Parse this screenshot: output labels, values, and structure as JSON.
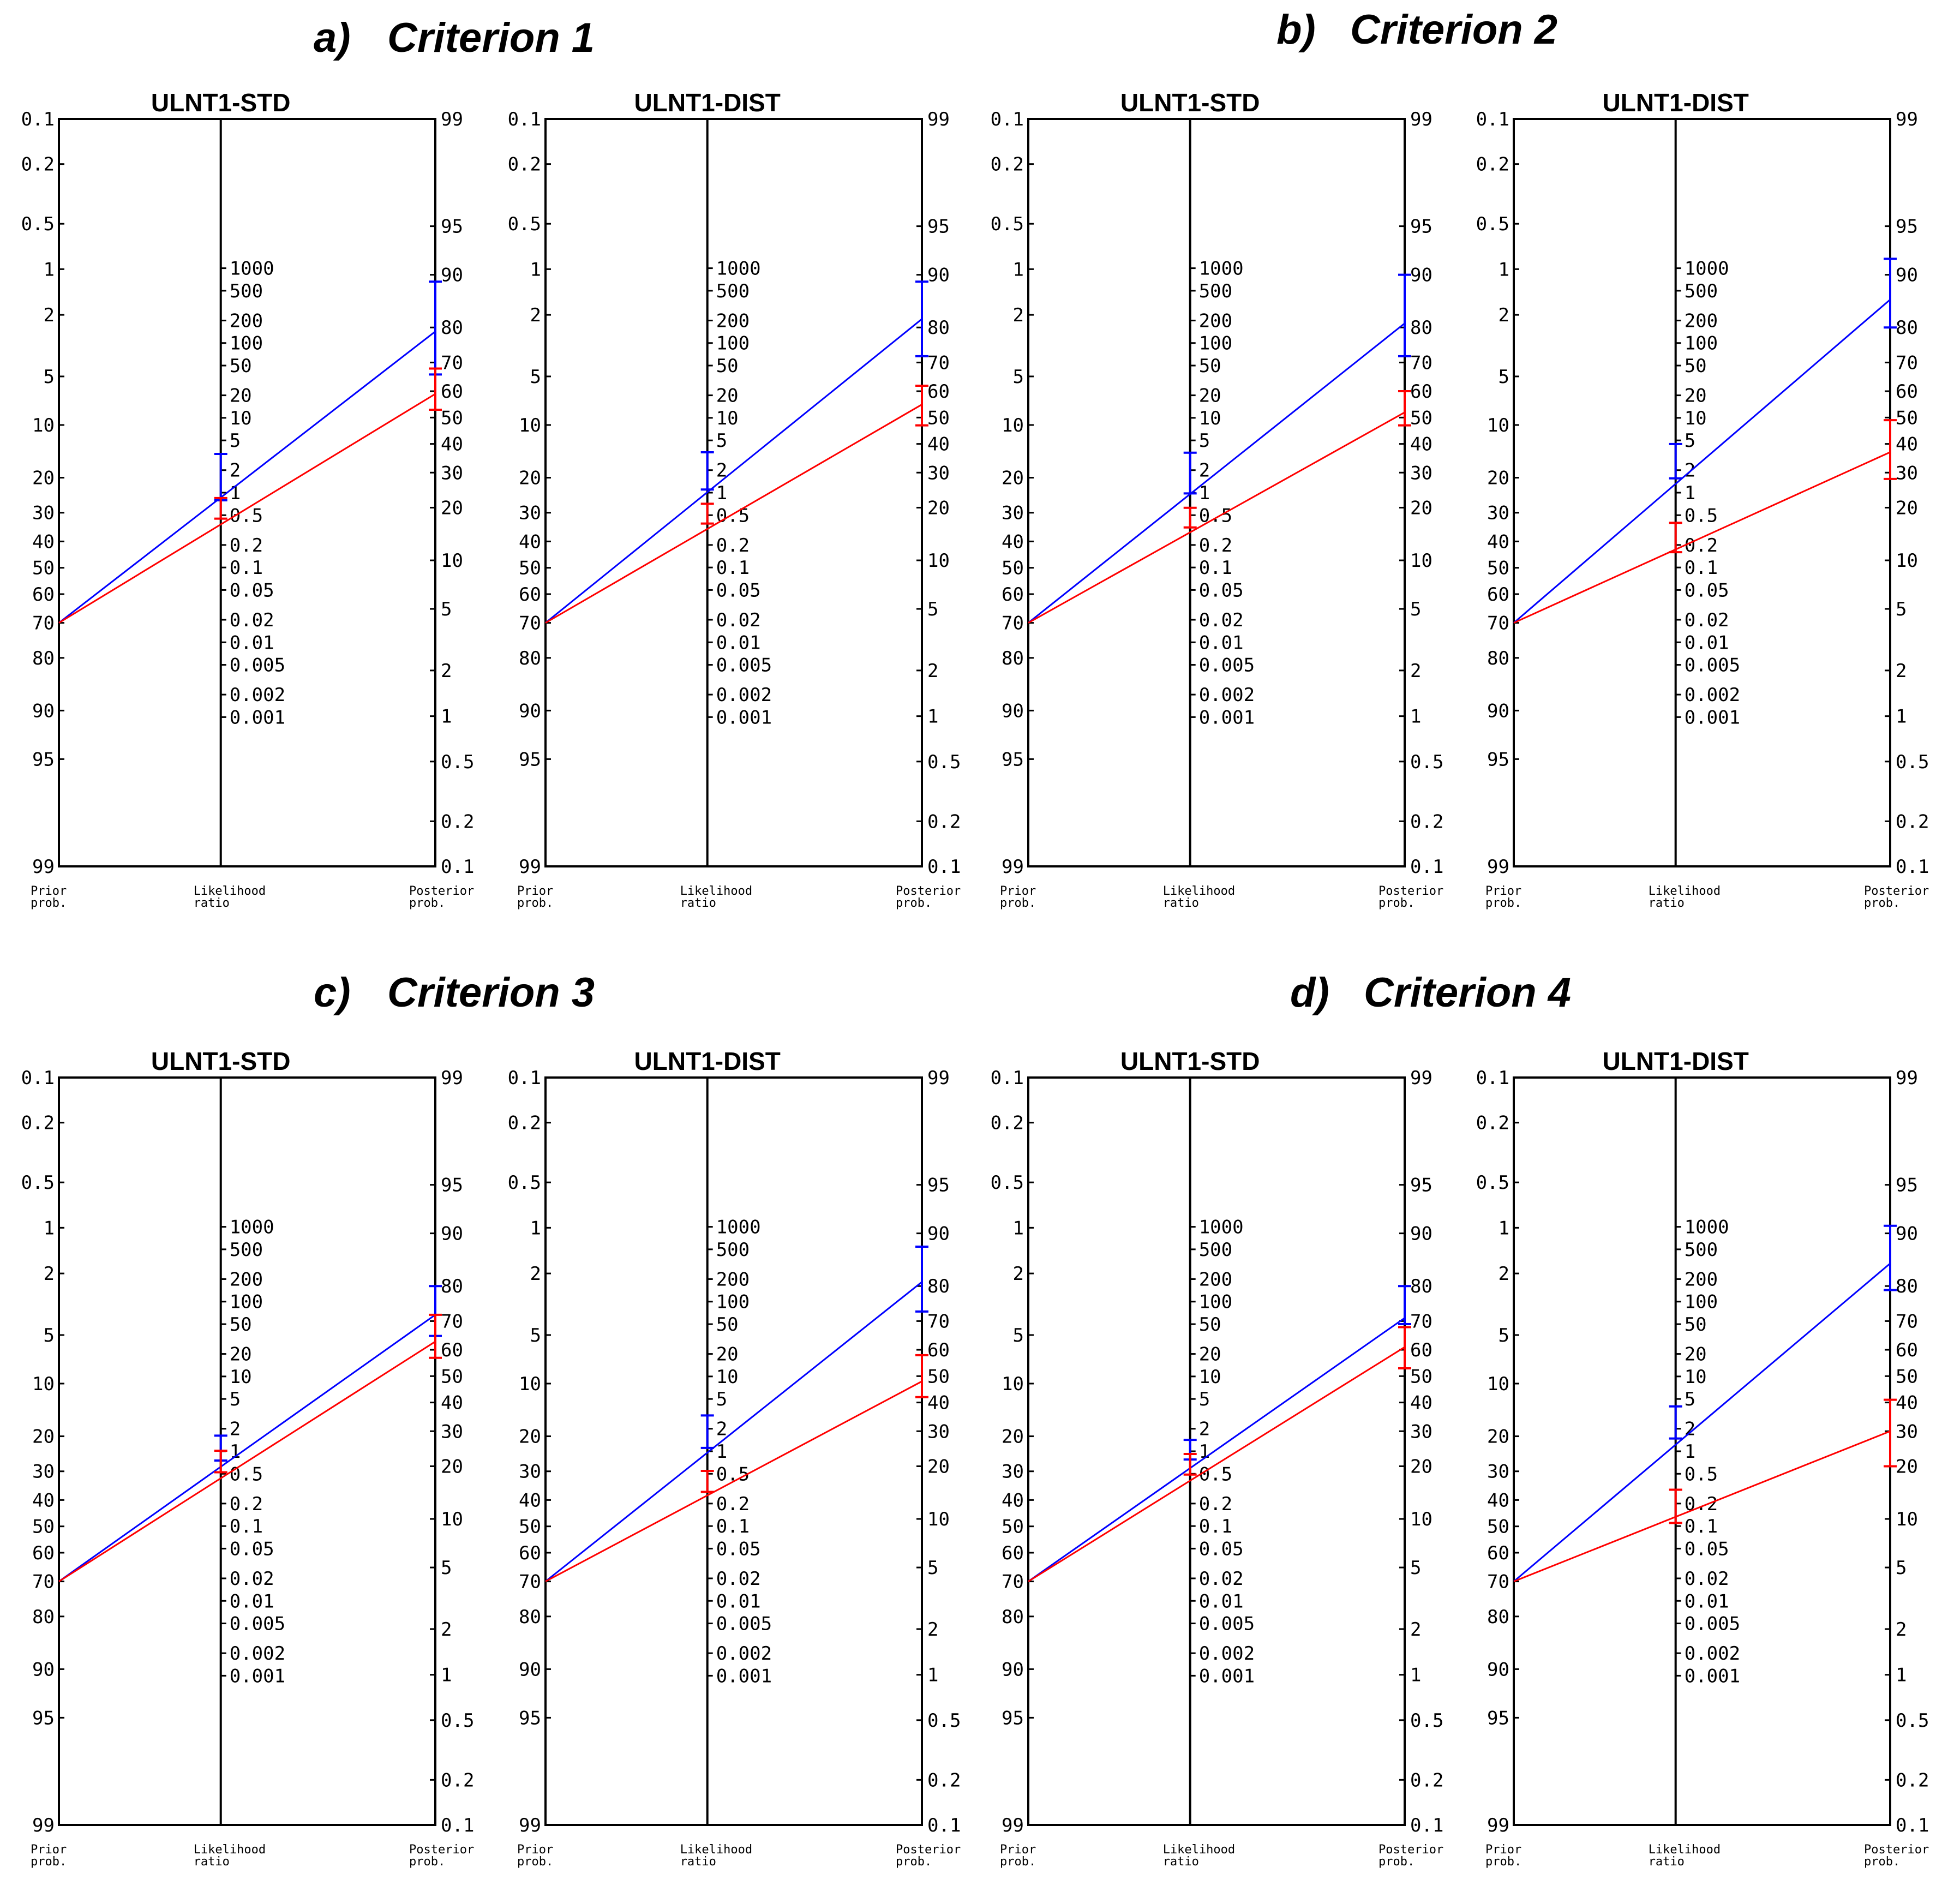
{
  "figure": {
    "criteria": [
      {
        "letter": "a)",
        "title": "Criterion 1"
      },
      {
        "letter": "b)",
        "title": "Criterion 2"
      },
      {
        "letter": "c)",
        "title": "Criterion 3"
      },
      {
        "letter": "d)",
        "title": "Criterion 4"
      }
    ],
    "footer_labels": {
      "prior_1": "Prior",
      "prior_2": "prob.",
      "lr_1": "Likelihood",
      "lr_2": "ratio",
      "post_1": "Posterior",
      "post_2": "prob."
    },
    "ticks": {
      "prior": [
        "0.1",
        "0.2",
        "0.5",
        "1",
        "2",
        "5",
        "10",
        "20",
        "30",
        "40",
        "50",
        "60",
        "70",
        "80",
        "90",
        "95",
        "99"
      ],
      "lr": [
        "1000",
        "500",
        "200",
        "100",
        "50",
        "20",
        "10",
        "5",
        "2",
        "1",
        "0.5",
        "0.2",
        "0.1",
        "0.05",
        "0.02",
        "0.01",
        "0.005",
        "0.002",
        "0.001"
      ],
      "posterior": [
        "99",
        "95",
        "90",
        "80",
        "70",
        "60",
        "50",
        "40",
        "30",
        "20",
        "10",
        "5",
        "2",
        "1",
        "0.5",
        "0.2",
        "0.1"
      ]
    },
    "colors": {
      "blue": "#0000ff",
      "red": "#ff0000",
      "axis": "#000000"
    }
  },
  "chart_data": [
    {
      "type": "nomogram",
      "criterion": "Criterion 1",
      "title": "ULNT1-STD",
      "prior": 70,
      "series": [
        {
          "color": "blue",
          "posterior": 79,
          "ci": [
            66,
            89
          ],
          "lr_ci": [
            1.2,
            4.5
          ]
        },
        {
          "color": "red",
          "posterior": 59,
          "ci": [
            53,
            68
          ],
          "lr_ci": [
            0.75,
            1.2
          ]
        }
      ]
    },
    {
      "type": "nomogram",
      "criterion": "Criterion 1",
      "title": "ULNT1-DIST",
      "prior": 70,
      "series": [
        {
          "color": "blue",
          "posterior": 82,
          "ci": [
            72,
            89
          ],
          "lr_ci": [
            1.1,
            4.6
          ]
        },
        {
          "color": "red",
          "posterior": 55,
          "ci": [
            47,
            62
          ],
          "lr_ci": [
            0.55,
            0.9
          ]
        }
      ]
    },
    {
      "type": "nomogram",
      "criterion": "Criterion 2",
      "title": "ULNT1-STD",
      "prior": 70,
      "series": [
        {
          "color": "blue",
          "posterior": 81,
          "ci": [
            72,
            90
          ],
          "lr_ci": [
            1.1,
            5
          ]
        },
        {
          "color": "red",
          "posterior": 52,
          "ci": [
            47,
            60
          ],
          "lr_ci": [
            0.55,
            0.9
          ]
        }
      ]
    },
    {
      "type": "nomogram",
      "criterion": "Criterion 2",
      "title": "ULNT1-DIST",
      "prior": 70,
      "series": [
        {
          "color": "blue",
          "posterior": 86,
          "ci": [
            80,
            92
          ],
          "lr_ci": [
            2,
            6
          ]
        },
        {
          "color": "red",
          "posterior": 37,
          "ci": [
            28,
            49
          ],
          "lr_ci": [
            0.18,
            0.45
          ]
        }
      ]
    },
    {
      "type": "nomogram",
      "criterion": "Criterion 3",
      "title": "ULNT1-STD",
      "prior": 70,
      "series": [
        {
          "color": "blue",
          "posterior": 72,
          "ci": [
            65,
            80
          ],
          "lr_ci": [
            0.8,
            2
          ]
        },
        {
          "color": "red",
          "posterior": 63,
          "ci": [
            57,
            72
          ],
          "lr_ci": [
            0.6,
            1.1
          ]
        }
      ]
    },
    {
      "type": "nomogram",
      "criterion": "Criterion 3",
      "title": "ULNT1-DIST",
      "prior": 70,
      "series": [
        {
          "color": "blue",
          "posterior": 81,
          "ci": [
            73,
            88
          ],
          "lr_ci": [
            1.2,
            5
          ]
        },
        {
          "color": "red",
          "posterior": 48,
          "ci": [
            42,
            58
          ],
          "lr_ci": [
            0.35,
            0.75
          ]
        }
      ]
    },
    {
      "type": "nomogram",
      "criterion": "Criterion 4",
      "title": "ULNT1-STD",
      "prior": 70,
      "series": [
        {
          "color": "blue",
          "posterior": 71,
          "ci": [
            69,
            80
          ],
          "lr_ci": [
            0.8,
            2
          ]
        },
        {
          "color": "red",
          "posterior": 61,
          "ci": [
            53,
            68
          ],
          "lr_ci": [
            0.55,
            1
          ]
        }
      ]
    },
    {
      "type": "nomogram",
      "criterion": "Criterion 4",
      "title": "ULNT1-DIST",
      "prior": 70,
      "series": [
        {
          "color": "blue",
          "posterior": 85,
          "ci": [
            79,
            91
          ],
          "lr_ci": [
            1.8,
            6
          ]
        },
        {
          "color": "red",
          "posterior": 30,
          "ci": [
            20,
            41
          ],
          "lr_ci": [
            0.1,
            0.25
          ]
        }
      ]
    }
  ]
}
